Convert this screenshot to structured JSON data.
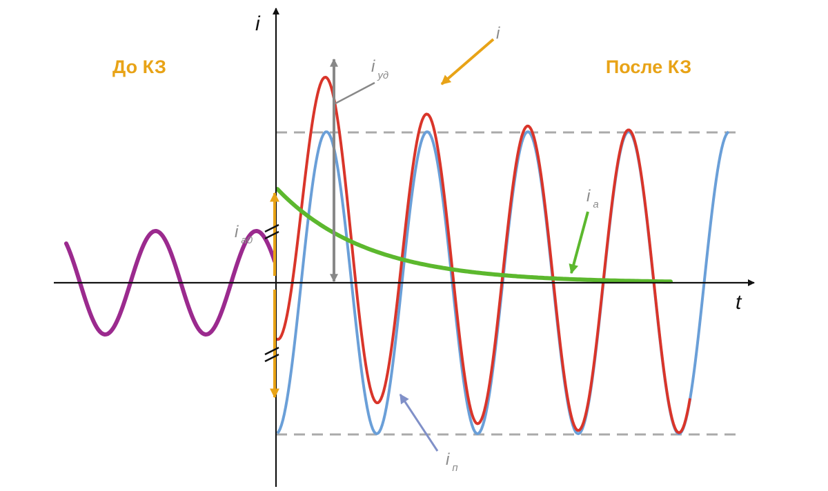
{
  "regions": {
    "before": "До КЗ",
    "after": "После КЗ"
  },
  "axes": {
    "y_label": "i",
    "x_label": "t"
  },
  "annotations": {
    "i_total": {
      "main": "i",
      "sub": ""
    },
    "i_peak": {
      "main": "i",
      "sub": "уд"
    },
    "i_aperiodic": {
      "main": "i",
      "sub": "a"
    },
    "i_aperiodic_0": {
      "main": "i",
      "sub": "a0"
    },
    "i_periodic": {
      "main": "i",
      "sub": "п"
    }
  },
  "colors": {
    "region_text": "#e8a317",
    "total_current": "#d9352a",
    "periodic_current": "#6a9fd8",
    "aperiodic_current": "#5cb82e",
    "prefault_current": "#9b2a8e",
    "peak_marker": "#888888",
    "envelope_dashed": "#aaaaaa",
    "initial_aperiodic_marker": "#e8a317",
    "axes": "#111111"
  }
}
